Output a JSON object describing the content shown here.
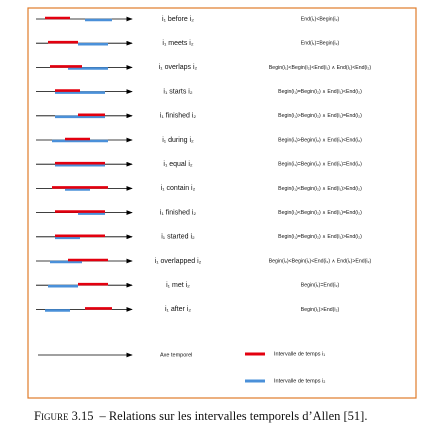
{
  "figure": {
    "rows": [
      {
        "relation": "i₁ before i₂",
        "condition": "End(i₁)<Begin(i₂)"
      },
      {
        "relation": "i₁ meets i₂",
        "condition": "End(i₁)=Begin(i₂)"
      },
      {
        "relation": "i₁ overlaps i₂",
        "condition": "Begin(i₁)<Begin(i₂)<End(i₁) ∧ End(i₁)<End(i₂)"
      },
      {
        "relation": "i₁ starts i₂",
        "condition": "Begin(i₁)=Begin(i₂) ∧ End(i₁)<End(i₂)"
      },
      {
        "relation": "i₁ finished i₂",
        "condition": "Begin(i₁)>Begin(i₂) ∧ End(i₁)=End(i₂)"
      },
      {
        "relation": "i₁ during i₂",
        "condition": "Begin(i₁)>Begin(i₂) ∧ End(i₁)<End(i₂)"
      },
      {
        "relation": "i₁ equal i₂",
        "condition": "Begin(i₁)=Begin(i₂) ∧ End(i₁)=End(i₂)"
      },
      {
        "relation": "i₁ contain i₂",
        "condition": "Begin(i₁)<Begin(i₂) ∧ End(i₁)>End(i₂)"
      },
      {
        "relation": "i₁ finished i₂",
        "condition": "Begin(i₁)<Begin(i₂) ∧ End(i₁)=End(i₂)"
      },
      {
        "relation": "i₁ started i₂",
        "condition": "Begin(i₁)=Begin(i₂) ∧ End(i₁)>End(i₂)"
      },
      {
        "relation": "i₁ overlapped i₂",
        "condition": "Begin(i₂)<Begin(i₁)<End(i₂) ∧ End(i₁)>End(i₂)"
      },
      {
        "relation": "i₁ met i₂",
        "condition": "Begin(i₁)=End(i₂)"
      },
      {
        "relation": "i₁ after i₂",
        "condition": "Begin(i₁)>End(i₂)"
      }
    ],
    "legend": {
      "axis": "Axe temporel",
      "interval1": "Intervalle de temps i₁",
      "interval2": "Intervalle de temps i₂"
    }
  },
  "caption": {
    "label": "Figure 3.15",
    "text": "– Relations sur les intervalles temporels d’Allen  [51]."
  }
}
